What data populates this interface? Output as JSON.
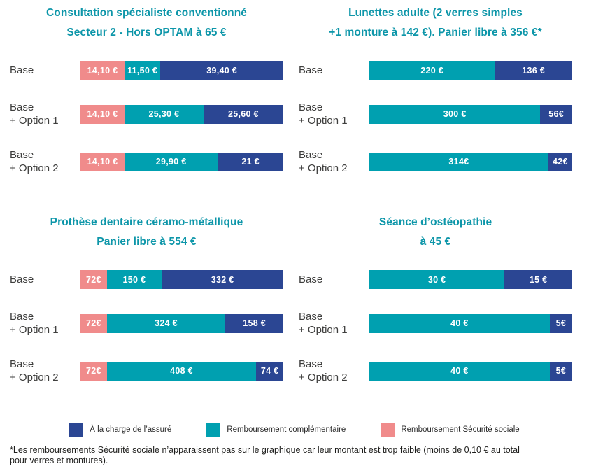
{
  "colors": {
    "charge": "#2B4693",
    "complementaire": "#00A0B0",
    "securite_sociale": "#F08B8B",
    "title": "#0D96A9"
  },
  "legend": [
    {
      "key": "charge",
      "label": "À la charge de l’assuré"
    },
    {
      "key": "complementaire",
      "label": "Remboursement complémentaire"
    },
    {
      "key": "securite_sociale",
      "label": "Remboursement Sécurité sociale"
    }
  ],
  "footnote": {
    "lines": [
      "*Les remboursements Sécurité sociale n’apparaissent pas sur le graphique car leur montant est trop faible (moins de 0,10 € au total",
      "pour verres et montures)."
    ]
  },
  "chart_data": [
    {
      "type": "bar",
      "name": "consultation-specialiste",
      "orientation": "horizontal",
      "stacked": true,
      "title": "Consultation spécialiste conventionné Secteur 2 - Hors OPTAM à 65 €",
      "title_lines": [
        "Consultation spécialiste conventionné",
        "Secteur 2 - Hors OPTAM à 65 €"
      ],
      "total": 65,
      "xlim": [
        0,
        65
      ],
      "categories": [
        "Base",
        "Base + Option 1",
        "Base + Option 2"
      ],
      "category_lines": [
        [
          "Base"
        ],
        [
          "Base",
          "+ Option 1"
        ],
        [
          "Base",
          "+ Option 2"
        ]
      ],
      "series": [
        {
          "name": "Remboursement Sécurité sociale",
          "key": "securite_sociale",
          "values": [
            14.1,
            14.1,
            14.1
          ],
          "labels": [
            "14,10 €",
            "14,10 €",
            "14,10 €"
          ]
        },
        {
          "name": "Remboursement complémentaire",
          "key": "complementaire",
          "values": [
            11.5,
            25.3,
            29.9
          ],
          "labels": [
            "11,50 €",
            "25,30 €",
            "29,90 €"
          ]
        },
        {
          "name": "À la charge de l’assuré",
          "key": "charge",
          "values": [
            39.4,
            25.6,
            21
          ],
          "labels": [
            "39,40 €",
            "25,60 €",
            "21 €"
          ]
        }
      ]
    },
    {
      "type": "bar",
      "name": "lunettes-adulte",
      "orientation": "horizontal",
      "stacked": true,
      "title": "Lunettes adulte (2 verres simples +1 monture à 142 €). Panier libre à 356 €*",
      "title_lines": [
        "Lunettes adulte (2 verres simples",
        "+1 monture à 142 €). Panier libre à 356 €*"
      ],
      "total": 356,
      "xlim": [
        0,
        356
      ],
      "categories": [
        "Base",
        "Base + Option 1",
        "Base + Option 2"
      ],
      "category_lines": [
        [
          "Base"
        ],
        [
          "Base",
          "+ Option 1"
        ],
        [
          "Base",
          "+ Option 2"
        ]
      ],
      "series": [
        {
          "name": "Remboursement complémentaire",
          "key": "complementaire",
          "values": [
            220,
            300,
            314
          ],
          "labels": [
            "220 €",
            "300 €",
            "314€"
          ]
        },
        {
          "name": "À la charge de l’assuré",
          "key": "charge",
          "values": [
            136,
            56,
            42
          ],
          "labels": [
            "136 €",
            "56€",
            "42€"
          ]
        }
      ]
    },
    {
      "type": "bar",
      "name": "prothese-dentaire",
      "orientation": "horizontal",
      "stacked": true,
      "title": "Prothèse dentaire céramo-métallique Panier libre à 554 €",
      "title_lines": [
        "Prothèse dentaire céramo-métallique",
        "Panier libre à 554 €"
      ],
      "total": 554,
      "xlim": [
        0,
        554
      ],
      "categories": [
        "Base",
        "Base + Option 1",
        "Base + Option 2"
      ],
      "category_lines": [
        [
          "Base"
        ],
        [
          "Base",
          "+ Option 1"
        ],
        [
          "Base",
          "+ Option 2"
        ]
      ],
      "series": [
        {
          "name": "Remboursement Sécurité sociale",
          "key": "securite_sociale",
          "values": [
            72,
            72,
            72
          ],
          "labels": [
            "72€",
            "72€",
            "72€"
          ]
        },
        {
          "name": "Remboursement complémentaire",
          "key": "complementaire",
          "values": [
            150,
            324,
            408
          ],
          "labels": [
            "150 €",
            "324 €",
            "408 €"
          ]
        },
        {
          "name": "À la charge de l’assuré",
          "key": "charge",
          "values": [
            332,
            158,
            74
          ],
          "labels": [
            "332 €",
            "158 €",
            "74 €"
          ]
        }
      ]
    },
    {
      "type": "bar",
      "name": "seance-osteopathie",
      "orientation": "horizontal",
      "stacked": true,
      "title": "Séance d’ostéopathie à 45 €",
      "title_lines": [
        "Séance d’ostéopathie",
        "à 45 €"
      ],
      "total": 45,
      "xlim": [
        0,
        45
      ],
      "categories": [
        "Base",
        "Base + Option 1",
        "Base + Option 2"
      ],
      "category_lines": [
        [
          "Base"
        ],
        [
          "Base",
          "+ Option 1"
        ],
        [
          "Base",
          "+ Option 2"
        ]
      ],
      "series": [
        {
          "name": "Remboursement complémentaire",
          "key": "complementaire",
          "values": [
            30,
            40,
            40
          ],
          "labels": [
            "30 €",
            "40 €",
            "40 €"
          ]
        },
        {
          "name": "À la charge de l’assuré",
          "key": "charge",
          "values": [
            15,
            5,
            5
          ],
          "labels": [
            "15 €",
            "5€",
            "5€"
          ]
        }
      ]
    }
  ]
}
